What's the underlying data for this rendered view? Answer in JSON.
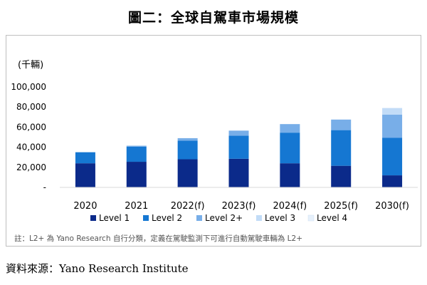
{
  "figure_title": "圖二：全球自駕車市場規模",
  "note": "註：L2+ 為 Yano Research 自行分類，定義在駕駛監測下可進行自動駕駛車輛為 L2+",
  "source": "資料來源：Yano Research Institute",
  "chart_data": {
    "type": "bar",
    "stacked": true,
    "title": "",
    "ylabel": "(千輛)",
    "xlabel": "",
    "ylim": [
      0,
      100000
    ],
    "y_ticks": [
      0,
      20000,
      40000,
      60000,
      80000,
      100000
    ],
    "y_tick_labels": [
      "-",
      "20,000",
      "40,000",
      "60,000",
      "80,000",
      "100,000"
    ],
    "grid": false,
    "legend_position": "bottom",
    "categories": [
      "2020",
      "2021",
      "2022(f)",
      "2023(f)",
      "2024(f)",
      "2025(f)",
      "2030(f)"
    ],
    "series": [
      {
        "name": "Level 1",
        "color": "#0b2a8a",
        "values": [
          24000,
          25500,
          28000,
          28500,
          24000,
          21500,
          12000
        ]
      },
      {
        "name": "Level 2",
        "color": "#1577d2",
        "values": [
          11000,
          15000,
          18500,
          23000,
          30500,
          35500,
          37500
        ]
      },
      {
        "name": "Level 2+",
        "color": "#78aee8",
        "values": [
          0,
          1000,
          2500,
          5000,
          8500,
          10500,
          23000
        ]
      },
      {
        "name": "Level 3",
        "color": "#c2dcf7",
        "values": [
          0,
          0,
          0,
          0,
          0,
          0,
          6500
        ]
      },
      {
        "name": "Level 4",
        "color": "#e6f0fb",
        "values": [
          0,
          0,
          0,
          0,
          0,
          0,
          0
        ]
      }
    ]
  }
}
